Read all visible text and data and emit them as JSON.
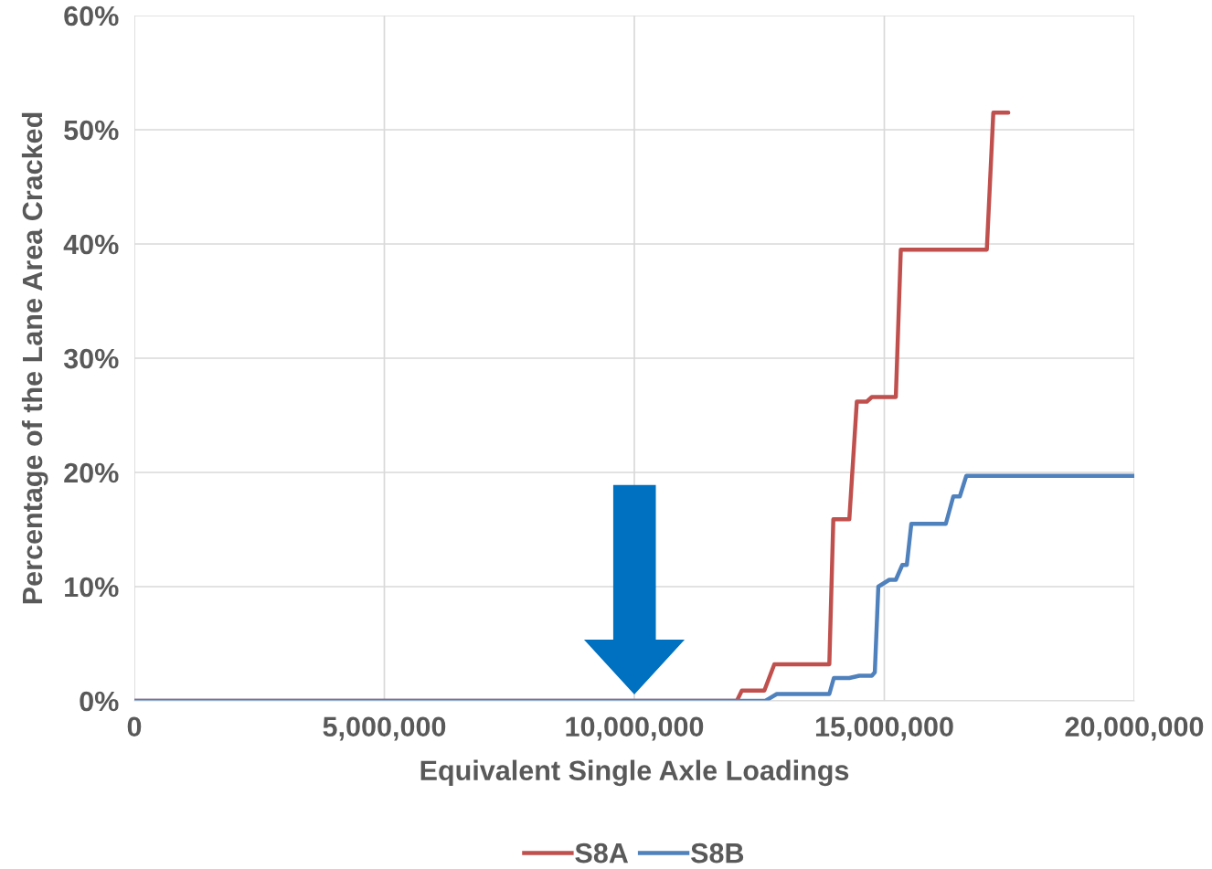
{
  "chart_data": {
    "type": "line",
    "xlabel": "Equivalent Single Axle Loadings",
    "ylabel": "Percentage of the Lane Area Cracked",
    "xlim": [
      0,
      20000000
    ],
    "xticks": [
      {
        "value": 0,
        "label": "0"
      },
      {
        "value": 5000000,
        "label": "5,000,000"
      },
      {
        "value": 10000000,
        "label": "10,000,000"
      },
      {
        "value": 15000000,
        "label": "15,000,000"
      },
      {
        "value": 20000000,
        "label": "20,000,000"
      }
    ],
    "ylim": [
      0,
      60
    ],
    "yticks": [
      {
        "value": 0,
        "label": "0%"
      },
      {
        "value": 10,
        "label": "10%"
      },
      {
        "value": 20,
        "label": "20%"
      },
      {
        "value": 30,
        "label": "30%"
      },
      {
        "value": 40,
        "label": "40%"
      },
      {
        "value": 50,
        "label": "50%"
      },
      {
        "value": 60,
        "label": "60%"
      }
    ],
    "grid": true,
    "legend": "bottom",
    "marker": "none",
    "line_style": "solid",
    "series": [
      {
        "name": "S8A",
        "color": "#c0504d",
        "x": [
          0,
          12050000,
          12150000,
          12600000,
          12800000,
          13900000,
          13980000,
          14300000,
          14450000,
          14650000,
          14750000,
          15230000,
          15330000,
          17050000,
          17180000,
          17480000
        ],
        "values": [
          0,
          0,
          0.9,
          0.9,
          3.2,
          3.2,
          15.9,
          15.9,
          26.2,
          26.2,
          26.6,
          26.6,
          39.5,
          39.5,
          51.5,
          51.5
        ]
      },
      {
        "name": "S8B",
        "color": "#4f81bd",
        "x": [
          0,
          12620000,
          12850000,
          13900000,
          13990000,
          14300000,
          14500000,
          14750000,
          14810000,
          14880000,
          15100000,
          15230000,
          15360000,
          15450000,
          15540000,
          16230000,
          16380000,
          16510000,
          16640000,
          20000000
        ],
        "values": [
          0,
          0,
          0.6,
          0.6,
          2.0,
          2.0,
          2.2,
          2.2,
          2.5,
          10.0,
          10.6,
          10.6,
          11.9,
          11.9,
          15.5,
          15.5,
          17.9,
          17.9,
          19.7,
          19.7
        ]
      }
    ]
  }
}
